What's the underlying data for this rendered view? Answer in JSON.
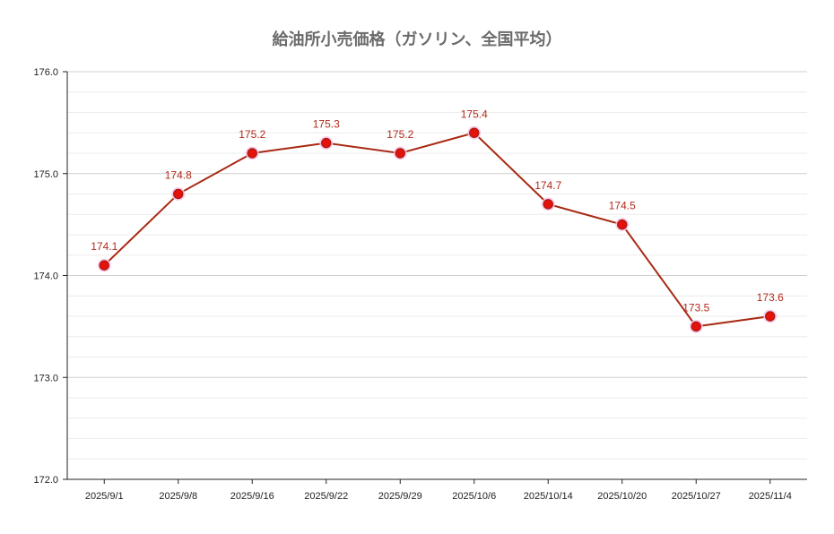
{
  "chart_data": {
    "type": "line",
    "title": "給油所小売価格（ガソリン、全国平均）",
    "xlabel": "",
    "ylabel": "",
    "categories": [
      "2025/9/1",
      "2025/9/8",
      "2025/9/16",
      "2025/9/22",
      "2025/9/29",
      "2025/10/6",
      "2025/10/14",
      "2025/10/20",
      "2025/10/27",
      "2025/11/4"
    ],
    "values": [
      174.1,
      174.8,
      175.2,
      175.3,
      175.2,
      175.4,
      174.7,
      174.5,
      173.5,
      173.6
    ],
    "data_labels": [
      "174.1",
      "174.8",
      "175.2",
      "175.3",
      "175.2",
      "175.4",
      "174.7",
      "174.5",
      "173.5",
      "173.6"
    ],
    "ylim": [
      172.0,
      176.0
    ],
    "yticks": [
      "172.0",
      "173.0",
      "174.0",
      "175.0",
      "176.0"
    ],
    "grid": true,
    "legend": "none",
    "colors": {
      "line": "#a82a14",
      "marker": "#e3120b",
      "label_text": "#b22a1a",
      "title": "#6b6b6b",
      "grid": "#d9d9d9",
      "axis": "#222222"
    }
  }
}
